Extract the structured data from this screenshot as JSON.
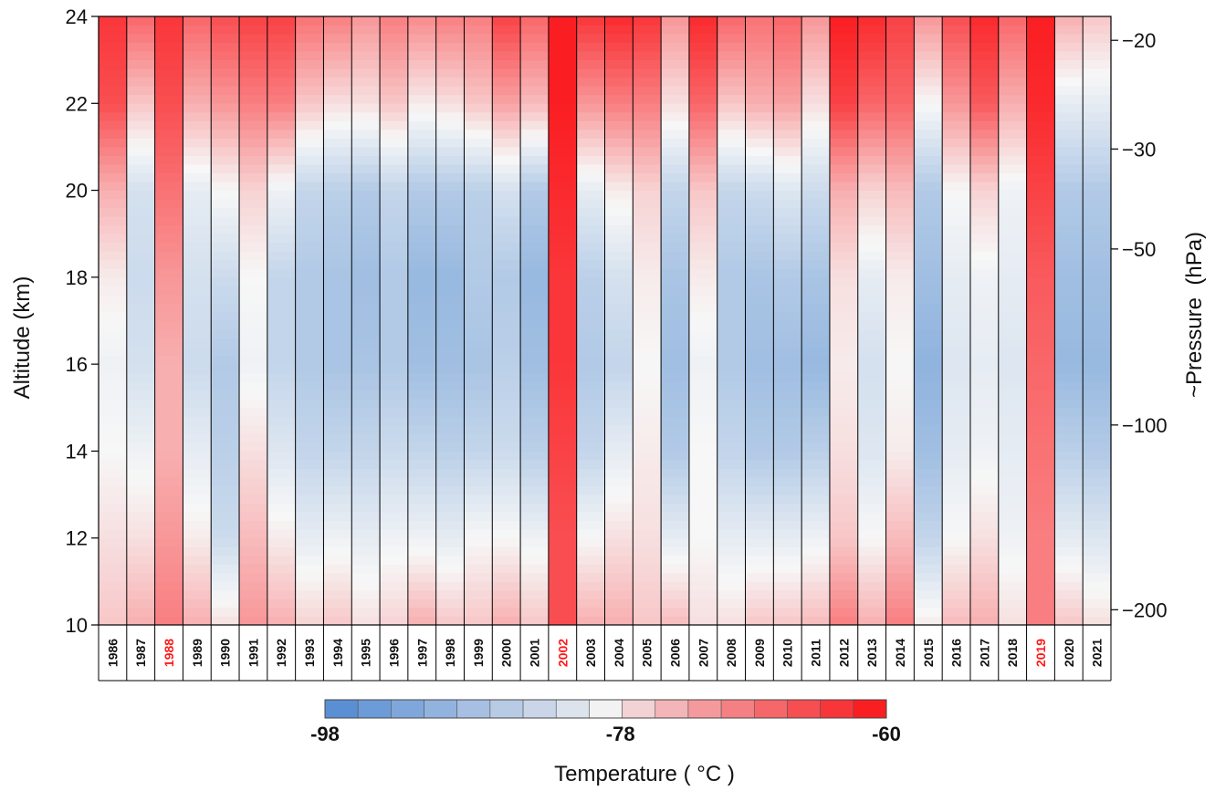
{
  "chart_data": {
    "type": "heatmap",
    "title": "",
    "ylabel": "Altitude (km)",
    "y2label": "~Pressure  (hPa)",
    "colorbar_label": "Temperature ( °C )",
    "ylim": [
      10,
      24
    ],
    "yticks": [
      "10",
      "12",
      "14",
      "16",
      "18",
      "20",
      "22",
      "24"
    ],
    "pressure_ticks": [
      {
        "label": "20",
        "alt": 23.45
      },
      {
        "label": "30",
        "alt": 20.95
      },
      {
        "label": "50",
        "alt": 18.65
      },
      {
        "label": "100",
        "alt": 14.6
      },
      {
        "label": "200",
        "alt": 10.35
      }
    ],
    "colorbar": {
      "min": -98,
      "max": -60,
      "tick_labels": [
        "-98",
        "-78",
        "-60"
      ],
      "colors": [
        "#5a8fd4",
        "#6d9bd8",
        "#80a7dc",
        "#93b3df",
        "#a6bfe2",
        "#b8cbe5",
        "#cad6e8",
        "#dde3ec",
        "#f2f2f2",
        "#f2d2d4",
        "#f3b5b7",
        "#f49a9d",
        "#f58083",
        "#f6676a",
        "#f74e52",
        "#f8363a",
        "#f91e22"
      ]
    },
    "years": [
      {
        "label": "1986",
        "highlight": false
      },
      {
        "label": "1987",
        "highlight": false
      },
      {
        "label": "1988",
        "highlight": true
      },
      {
        "label": "1989",
        "highlight": false
      },
      {
        "label": "1990",
        "highlight": false
      },
      {
        "label": "1991",
        "highlight": false
      },
      {
        "label": "1992",
        "highlight": false
      },
      {
        "label": "1993",
        "highlight": false
      },
      {
        "label": "1994",
        "highlight": false
      },
      {
        "label": "1995",
        "highlight": false
      },
      {
        "label": "1996",
        "highlight": false
      },
      {
        "label": "1997",
        "highlight": false
      },
      {
        "label": "1998",
        "highlight": false
      },
      {
        "label": "1999",
        "highlight": false
      },
      {
        "label": "2000",
        "highlight": false
      },
      {
        "label": "2001",
        "highlight": false
      },
      {
        "label": "2002",
        "highlight": true
      },
      {
        "label": "2003",
        "highlight": false
      },
      {
        "label": "2004",
        "highlight": false
      },
      {
        "label": "2005",
        "highlight": false
      },
      {
        "label": "2006",
        "highlight": false
      },
      {
        "label": "2007",
        "highlight": false
      },
      {
        "label": "2008",
        "highlight": false
      },
      {
        "label": "2009",
        "highlight": false
      },
      {
        "label": "2010",
        "highlight": false
      },
      {
        "label": "2011",
        "highlight": false
      },
      {
        "label": "2012",
        "highlight": false
      },
      {
        "label": "2013",
        "highlight": false
      },
      {
        "label": "2014",
        "highlight": false
      },
      {
        "label": "2015",
        "highlight": false
      },
      {
        "label": "2016",
        "highlight": false
      },
      {
        "label": "2017",
        "highlight": false
      },
      {
        "label": "2018",
        "highlight": false
      },
      {
        "label": "2019",
        "highlight": true
      },
      {
        "label": "2020",
        "highlight": false
      },
      {
        "label": "2021",
        "highlight": false
      }
    ],
    "altitude_levels_km": [
      10,
      12,
      14,
      16,
      18,
      20,
      22,
      24
    ],
    "temperature_c": [
      [
        -74,
        -76,
        -78,
        -79,
        -77,
        -72,
        -64,
        -62
      ],
      [
        -72,
        -76,
        -79,
        -82,
        -83,
        -82,
        -74,
        -66
      ],
      [
        -68,
        -70,
        -72,
        -72,
        -70,
        -67,
        -64,
        -62
      ],
      [
        -72,
        -77,
        -80,
        -83,
        -82,
        -80,
        -72,
        -66
      ],
      [
        -76,
        -83,
        -85,
        -86,
        -83,
        -78,
        -70,
        -64
      ],
      [
        -70,
        -73,
        -76,
        -79,
        -78,
        -75,
        -68,
        -63
      ],
      [
        -72,
        -77,
        -81,
        -84,
        -84,
        -79,
        -68,
        -63
      ],
      [
        -75,
        -80,
        -84,
        -86,
        -86,
        -84,
        -74,
        -67
      ],
      [
        -74,
        -79,
        -84,
        -87,
        -87,
        -85,
        -76,
        -68
      ],
      [
        -76,
        -80,
        -84,
        -87,
        -88,
        -86,
        -76,
        -70
      ],
      [
        -75,
        -79,
        -83,
        -86,
        -86,
        -84,
        -74,
        -68
      ],
      [
        -72,
        -79,
        -84,
        -88,
        -89,
        -86,
        -77,
        -69
      ],
      [
        -74,
        -80,
        -85,
        -88,
        -89,
        -86,
        -76,
        -68
      ],
      [
        -74,
        -78,
        -84,
        -87,
        -86,
        -85,
        -74,
        -68
      ],
      [
        -72,
        -78,
        -83,
        -85,
        -86,
        -82,
        -71,
        -63
      ],
      [
        -74,
        -79,
        -85,
        -88,
        -89,
        -86,
        -73,
        -66
      ],
      [
        -64,
        -64,
        -63,
        -62,
        -62,
        -61,
        -60,
        -60
      ],
      [
        -72,
        -78,
        -84,
        -86,
        -85,
        -80,
        -70,
        -62
      ],
      [
        -72,
        -76,
        -80,
        -84,
        -82,
        -77,
        -68,
        -61
      ],
      [
        -74,
        -76,
        -77,
        -78,
        -77,
        -75,
        -68,
        -62
      ],
      [
        -73,
        -80,
        -86,
        -88,
        -87,
        -84,
        -76,
        -70
      ],
      [
        -76,
        -78,
        -78,
        -79,
        -77,
        -74,
        -66,
        -61
      ],
      [
        -76,
        -80,
        -84,
        -86,
        -86,
        -84,
        -74,
        -66
      ],
      [
        -74,
        -80,
        -86,
        -88,
        -87,
        -83,
        -72,
        -67
      ],
      [
        -74,
        -80,
        -86,
        -88,
        -86,
        -81,
        -71,
        -66
      ],
      [
        -73,
        -79,
        -85,
        -89,
        -87,
        -83,
        -76,
        -70
      ],
      [
        -68,
        -74,
        -76,
        -77,
        -76,
        -72,
        -63,
        -60
      ],
      [
        -72,
        -78,
        -81,
        -82,
        -80,
        -75,
        -66,
        -61
      ],
      [
        -68,
        -73,
        -77,
        -78,
        -77,
        -73,
        -66,
        -63
      ],
      [
        -77,
        -84,
        -88,
        -90,
        -88,
        -86,
        -78,
        -70
      ],
      [
        -73,
        -78,
        -80,
        -81,
        -80,
        -78,
        -70,
        -64
      ],
      [
        -72,
        -76,
        -79,
        -80,
        -79,
        -75,
        -65,
        -61
      ],
      [
        -76,
        -79,
        -80,
        -81,
        -80,
        -79,
        -72,
        -66
      ],
      [
        -68,
        -68,
        -67,
        -66,
        -65,
        -63,
        -61,
        -60
      ],
      [
        -74,
        -80,
        -85,
        -89,
        -88,
        -86,
        -80,
        -72
      ],
      [
        -76,
        -81,
        -86,
        -89,
        -88,
        -86,
        -80,
        -74
      ]
    ]
  }
}
